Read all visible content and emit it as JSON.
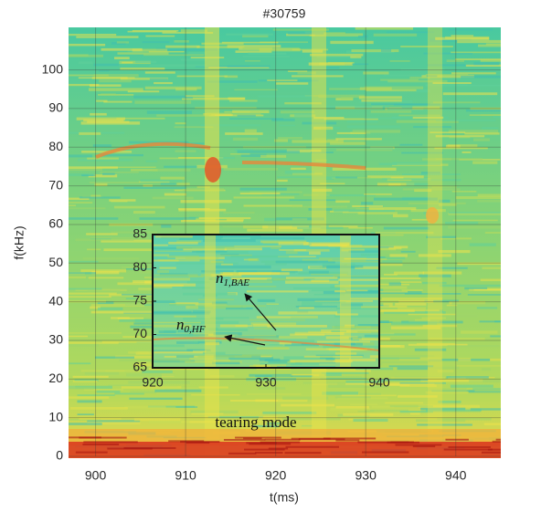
{
  "chart_data": [
    {
      "type": "spectrogram",
      "title": "#30759",
      "xlabel": "t(ms)",
      "ylabel": "f(kHz)",
      "xlim": [
        897,
        945
      ],
      "ylim": [
        0,
        111
      ],
      "xticks": [
        900,
        910,
        920,
        930,
        940
      ],
      "yticks": [
        0,
        10,
        20,
        30,
        40,
        50,
        60,
        70,
        80,
        90,
        100
      ],
      "grid": true,
      "annotations": [
        {
          "text": "tearing mode"
        }
      ]
    },
    {
      "type": "spectrogram",
      "xlim": [
        920,
        940
      ],
      "ylim": [
        65,
        85
      ],
      "xticks": [
        920,
        930,
        940
      ],
      "yticks": [
        65,
        70,
        75,
        80,
        85
      ],
      "grid": false,
      "annotations": [
        {
          "text": "n",
          "sub": "1,BAE"
        },
        {
          "text": "n",
          "sub": "0,HF"
        }
      ]
    }
  ]
}
